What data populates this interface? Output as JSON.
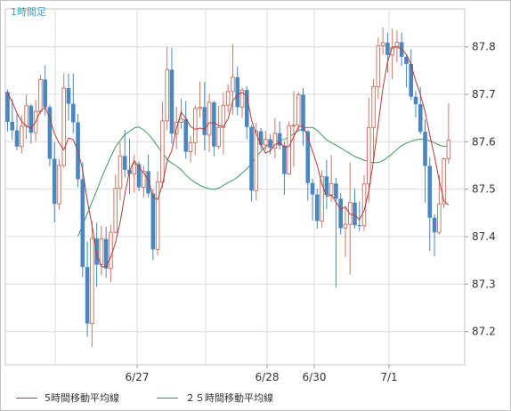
{
  "chart_data": {
    "type": "candlestick",
    "timeframe_label": "1時間足",
    "x_tick_labels": [
      "6/27",
      "6/28",
      "6/30",
      "7/1"
    ],
    "y_ticks": [
      87.2,
      87.3,
      87.4,
      87.5,
      87.6,
      87.7,
      87.8
    ],
    "ylim": [
      87.13,
      87.88
    ],
    "grid": true,
    "up_color": "#c87a68",
    "down_color": "#4a86c0",
    "ma5_color": "#b73a3a",
    "ma25_color": "#3a9a5a",
    "ohlc": [
      [
        87.705,
        87.71,
        87.622,
        87.642
      ],
      [
        87.642,
        87.69,
        87.604,
        87.624
      ],
      [
        87.624,
        87.658,
        87.582,
        87.59
      ],
      [
        87.59,
        87.656,
        87.575,
        87.633
      ],
      [
        87.633,
        87.7,
        87.606,
        87.676
      ],
      [
        87.676,
        87.68,
        87.596,
        87.619
      ],
      [
        87.619,
        87.688,
        87.601,
        87.664
      ],
      [
        87.664,
        87.741,
        87.658,
        87.731
      ],
      [
        87.731,
        87.761,
        87.655,
        87.673
      ],
      [
        87.673,
        87.678,
        87.548,
        87.564
      ],
      [
        87.564,
        87.599,
        87.43,
        87.469
      ],
      [
        87.469,
        87.564,
        87.457,
        87.55
      ],
      [
        87.55,
        87.744,
        87.545,
        87.713
      ],
      [
        87.713,
        87.744,
        87.645,
        87.68
      ],
      [
        87.68,
        87.744,
        87.618,
        87.641
      ],
      [
        87.641,
        87.659,
        87.504,
        87.521
      ],
      [
        87.521,
        87.557,
        87.315,
        87.336
      ],
      [
        87.336,
        87.39,
        87.189,
        87.217
      ],
      [
        87.217,
        87.433,
        87.167,
        87.396
      ],
      [
        87.396,
        87.429,
        87.294,
        87.341
      ],
      [
        87.341,
        87.423,
        87.318,
        87.395
      ],
      [
        87.395,
        87.421,
        87.313,
        87.333
      ],
      [
        87.333,
        87.425,
        87.304,
        87.409
      ],
      [
        87.409,
        87.531,
        87.406,
        87.502
      ],
      [
        87.502,
        87.599,
        87.477,
        87.57
      ],
      [
        87.57,
        87.625,
        87.525,
        87.541
      ],
      [
        87.541,
        87.607,
        87.49,
        87.532
      ],
      [
        87.532,
        87.573,
        87.493,
        87.553
      ],
      [
        87.553,
        87.559,
        87.496,
        87.504
      ],
      [
        87.504,
        87.55,
        87.482,
        87.538
      ],
      [
        87.538,
        87.573,
        87.483,
        87.491
      ],
      [
        87.491,
        87.5,
        87.35,
        87.373
      ],
      [
        87.373,
        87.538,
        87.361,
        87.515
      ],
      [
        87.515,
        87.684,
        87.503,
        87.644
      ],
      [
        87.644,
        87.8,
        87.624,
        87.752
      ],
      [
        87.752,
        87.798,
        87.596,
        87.617
      ],
      [
        87.617,
        87.674,
        87.584,
        87.641
      ],
      [
        87.641,
        87.691,
        87.627,
        87.648
      ],
      [
        87.648,
        87.686,
        87.564,
        87.579
      ],
      [
        87.579,
        87.612,
        87.556,
        87.598
      ],
      [
        87.598,
        87.677,
        87.572,
        87.67
      ],
      [
        87.67,
        87.727,
        87.651,
        87.673
      ],
      [
        87.673,
        87.726,
        87.582,
        87.614
      ],
      [
        87.614,
        87.701,
        87.578,
        87.683
      ],
      [
        87.683,
        87.686,
        87.569,
        87.59
      ],
      [
        87.59,
        87.676,
        87.584,
        87.63
      ],
      [
        87.63,
        87.703,
        87.573,
        87.677
      ],
      [
        87.677,
        87.721,
        87.662,
        87.706
      ],
      [
        87.706,
        87.806,
        87.657,
        87.736
      ],
      [
        87.736,
        87.759,
        87.656,
        87.673
      ],
      [
        87.673,
        87.714,
        87.65,
        87.709
      ],
      [
        87.709,
        87.717,
        87.605,
        87.631
      ],
      [
        87.631,
        87.635,
        87.474,
        87.497
      ],
      [
        87.497,
        87.64,
        87.477,
        87.622
      ],
      [
        87.622,
        87.629,
        87.583,
        87.593
      ],
      [
        87.593,
        87.623,
        87.582,
        87.605
      ],
      [
        87.605,
        87.616,
        87.574,
        87.587
      ],
      [
        87.587,
        87.65,
        87.565,
        87.618
      ],
      [
        87.618,
        87.643,
        87.584,
        87.592
      ],
      [
        87.592,
        87.6,
        87.488,
        87.532
      ],
      [
        87.532,
        87.643,
        87.53,
        87.634
      ],
      [
        87.634,
        87.707,
        87.547,
        87.635
      ],
      [
        87.635,
        87.705,
        87.624,
        87.699
      ],
      [
        87.699,
        87.713,
        87.591,
        87.622
      ],
      [
        87.622,
        87.624,
        87.476,
        87.513
      ],
      [
        87.513,
        87.522,
        87.434,
        87.489
      ],
      [
        87.489,
        87.501,
        87.417,
        87.433
      ],
      [
        87.433,
        87.54,
        87.419,
        87.527
      ],
      [
        87.527,
        87.562,
        87.458,
        87.488
      ],
      [
        87.488,
        87.572,
        87.473,
        87.512
      ],
      [
        87.512,
        87.524,
        87.293,
        87.48
      ],
      [
        87.48,
        87.492,
        87.405,
        87.418
      ],
      [
        87.418,
        87.461,
        87.357,
        87.426
      ],
      [
        87.426,
        87.557,
        87.32,
        87.472
      ],
      [
        87.472,
        87.501,
        87.417,
        87.424
      ],
      [
        87.424,
        87.474,
        87.411,
        87.423
      ],
      [
        87.423,
        87.53,
        87.412,
        87.511
      ],
      [
        87.511,
        87.693,
        87.472,
        87.63
      ],
      [
        87.63,
        87.732,
        87.557,
        87.716
      ],
      [
        87.716,
        87.82,
        87.691,
        87.802
      ],
      [
        87.802,
        87.841,
        87.783,
        87.809
      ],
      [
        87.809,
        87.83,
        87.746,
        87.783
      ],
      [
        87.783,
        87.839,
        87.732,
        87.798
      ],
      [
        87.798,
        87.835,
        87.767,
        87.81
      ],
      [
        87.81,
        87.83,
        87.76,
        87.779
      ],
      [
        87.779,
        87.784,
        87.715,
        87.764
      ],
      [
        87.764,
        87.795,
        87.688,
        87.695
      ],
      [
        87.695,
        87.707,
        87.651,
        87.679
      ],
      [
        87.679,
        87.715,
        87.616,
        87.621
      ],
      [
        87.621,
        87.647,
        87.472,
        87.549
      ],
      [
        87.549,
        87.567,
        87.37,
        87.44
      ],
      [
        87.44,
        87.447,
        87.358,
        87.409
      ],
      [
        87.409,
        87.53,
        87.405,
        87.469
      ],
      [
        87.469,
        87.567,
        87.46,
        87.564
      ],
      [
        87.564,
        87.681,
        87.553,
        87.603
      ]
    ],
    "ma5": [
      87.702,
      87.684,
      87.66,
      87.643,
      87.633,
      87.628,
      87.642,
      87.665,
      87.673,
      87.65,
      87.617,
      87.597,
      87.583,
      87.608,
      87.604,
      87.581,
      87.541,
      87.476,
      87.423,
      87.364,
      87.337,
      87.336,
      87.357,
      87.387,
      87.431,
      87.49,
      87.539,
      87.56,
      87.547,
      87.534,
      87.52,
      87.483,
      87.478,
      87.509,
      87.559,
      87.581,
      87.628,
      87.663,
      87.649,
      87.632,
      87.626,
      87.629,
      87.626,
      87.64,
      87.64,
      87.634,
      87.632,
      87.648,
      87.686,
      87.699,
      87.704,
      87.696,
      87.646,
      87.617,
      87.594,
      87.576,
      87.581,
      87.594,
      87.599,
      87.589,
      87.59,
      87.611,
      87.631,
      87.634,
      87.609,
      87.58,
      87.551,
      87.511,
      87.485,
      87.488,
      87.473,
      87.457,
      87.463,
      87.447,
      87.446,
      87.436,
      87.455,
      87.496,
      87.561,
      87.636,
      87.713,
      87.769,
      87.799,
      87.801,
      87.795,
      87.784,
      87.763,
      87.728,
      87.699,
      87.663,
      87.614,
      87.569,
      87.519,
      87.475,
      87.467
    ],
    "ma25": [
      87.401,
      87.424,
      87.449,
      87.473,
      87.497,
      87.523,
      87.546,
      87.568,
      87.589,
      87.603,
      87.615,
      87.622,
      87.629,
      87.631,
      87.625,
      87.616,
      87.604,
      87.59,
      87.577,
      87.563,
      87.555,
      87.549,
      87.541,
      87.53,
      87.521,
      87.514,
      87.508,
      87.504,
      87.501,
      87.5,
      87.502,
      87.508,
      87.514,
      87.519,
      87.525,
      87.534,
      87.543,
      87.554,
      87.567,
      87.58,
      87.589,
      87.596,
      87.601,
      87.603,
      87.605,
      87.61,
      87.617,
      87.623,
      87.628,
      87.63,
      87.63,
      87.624,
      87.614,
      87.604,
      87.598,
      87.593,
      87.587,
      87.581,
      87.575,
      87.569,
      87.565,
      87.561,
      87.558,
      87.556,
      87.556,
      87.56,
      87.567,
      87.575,
      87.584,
      87.592,
      87.597,
      87.601,
      87.604,
      87.606,
      87.605,
      87.602,
      87.598,
      87.593,
      87.59,
      87.592
    ],
    "ma5_legend": "5時間移動平均線",
    "ma25_legend": "２５時間移動平均線"
  }
}
